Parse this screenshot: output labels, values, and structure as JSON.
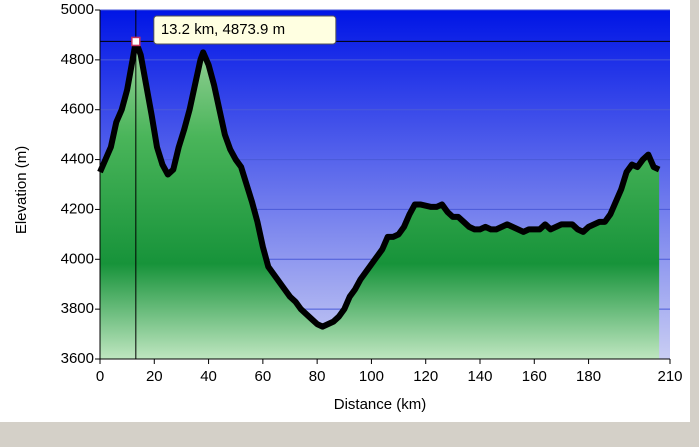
{
  "chart_data": {
    "type": "area",
    "xlabel": "Distance  (km)",
    "ylabel": "Elevation (m)",
    "x": [
      0,
      2,
      4,
      6,
      8,
      10,
      12,
      13.2,
      15,
      17,
      19,
      21,
      23,
      25,
      27,
      29,
      31,
      33,
      35,
      37,
      38,
      40,
      42,
      44,
      46,
      48,
      50,
      52,
      54,
      56,
      58,
      60,
      62,
      64,
      66,
      68,
      70,
      72,
      74,
      76,
      78,
      80,
      82,
      84,
      86,
      88,
      90,
      92,
      94,
      96,
      98,
      100,
      102,
      104,
      106,
      108,
      110,
      112,
      114,
      116,
      118,
      120,
      122,
      124,
      126,
      128,
      130,
      132,
      134,
      136,
      138,
      140,
      142,
      144,
      146,
      148,
      150,
      152,
      154,
      156,
      158,
      160,
      162,
      164,
      166,
      168,
      170,
      172,
      174,
      176,
      178,
      180,
      182,
      184,
      186,
      188,
      190,
      192,
      194,
      196,
      198,
      200,
      202,
      204,
      206
    ],
    "series": [
      {
        "name": "Elevation",
        "color": "#000000",
        "values": [
          4350,
          4400,
          4450,
          4550,
          4600,
          4680,
          4800,
          4874,
          4820,
          4700,
          4580,
          4450,
          4380,
          4340,
          4360,
          4450,
          4520,
          4600,
          4700,
          4800,
          4830,
          4780,
          4700,
          4600,
          4500,
          4440,
          4400,
          4370,
          4300,
          4230,
          4150,
          4050,
          3970,
          3940,
          3910,
          3880,
          3850,
          3830,
          3800,
          3780,
          3760,
          3740,
          3730,
          3740,
          3750,
          3770,
          3800,
          3850,
          3880,
          3920,
          3950,
          3980,
          4010,
          4040,
          4090,
          4090,
          4100,
          4130,
          4180,
          4220,
          4220,
          4215,
          4210,
          4210,
          4220,
          4190,
          4170,
          4170,
          4150,
          4130,
          4120,
          4120,
          4130,
          4120,
          4120,
          4130,
          4140,
          4130,
          4120,
          4110,
          4120,
          4120,
          4120,
          4140,
          4120,
          4130,
          4140,
          4140,
          4140,
          4120,
          4110,
          4130,
          4140,
          4150,
          4150,
          4180,
          4230,
          4280,
          4350,
          4380,
          4370,
          4400,
          4420,
          4370,
          4360
        ]
      }
    ],
    "highlight": {
      "x": 13.2,
      "y": 4873.9,
      "label": "13.2 km, 4873.9 m"
    },
    "xlim": [
      0,
      210
    ],
    "xticks": [
      0,
      20,
      40,
      60,
      80,
      100,
      120,
      140,
      160,
      180,
      210
    ],
    "ylim": [
      3600,
      5000
    ],
    "yticks": [
      3600,
      3800,
      4000,
      4200,
      4400,
      4600,
      4800,
      5000
    ],
    "grid": true
  }
}
